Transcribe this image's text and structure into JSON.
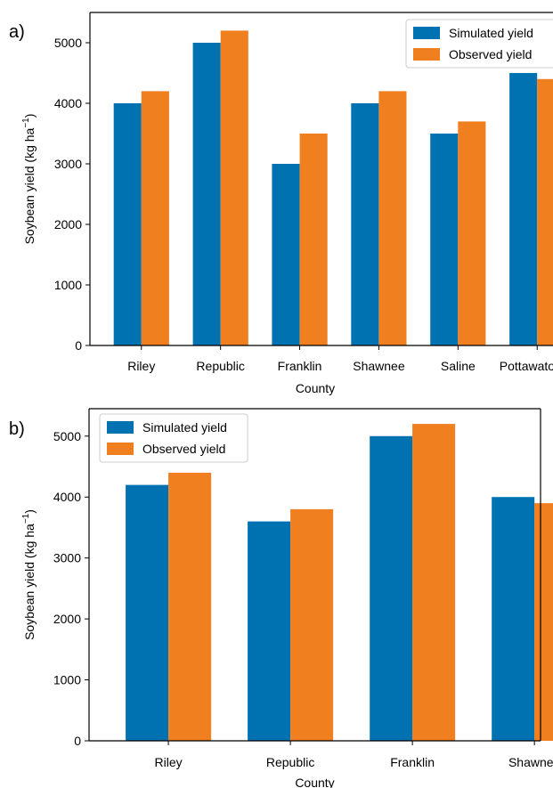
{
  "chart_data": [
    {
      "panel_label": "a)",
      "type": "bar",
      "xlabel": "County",
      "ylabel_main": "Soybean yield (kg ha",
      "ylabel_sup": "−1",
      "ylabel_close": ")",
      "categories": [
        "Riley",
        "Republic",
        "Franklin",
        "Shawnee",
        "Saline",
        "Pottawatomie"
      ],
      "series": [
        {
          "name": "Simulated yield",
          "color": "#0072b2",
          "values": [
            4000,
            5000,
            3000,
            4000,
            3500,
            4500
          ]
        },
        {
          "name": "Observed yield",
          "color": "#f07f1f",
          "values": [
            4200,
            5200,
            3500,
            4200,
            3700,
            4400
          ]
        }
      ],
      "ylim": [
        0,
        5500
      ],
      "yticks": [
        0,
        1000,
        2000,
        3000,
        4000,
        5000
      ],
      "grid": false,
      "legend_position": "top-right"
    },
    {
      "panel_label": "b)",
      "type": "bar",
      "xlabel": "County",
      "ylabel_main": "Soybean yield (kg ha",
      "ylabel_sup": "−1",
      "ylabel_close": ")",
      "categories": [
        "Riley",
        "Republic",
        "Franklin",
        "Shawnee"
      ],
      "series": [
        {
          "name": "Simulated yield",
          "color": "#0072b2",
          "values": [
            4200,
            3600,
            5000,
            4000
          ]
        },
        {
          "name": "Observed yield",
          "color": "#f07f1f",
          "values": [
            4400,
            3800,
            5200,
            3900
          ]
        }
      ],
      "ylim": [
        0,
        5450
      ],
      "yticks": [
        0,
        1000,
        2000,
        3000,
        4000,
        5000
      ],
      "grid": false,
      "legend_position": "top-left"
    }
  ]
}
